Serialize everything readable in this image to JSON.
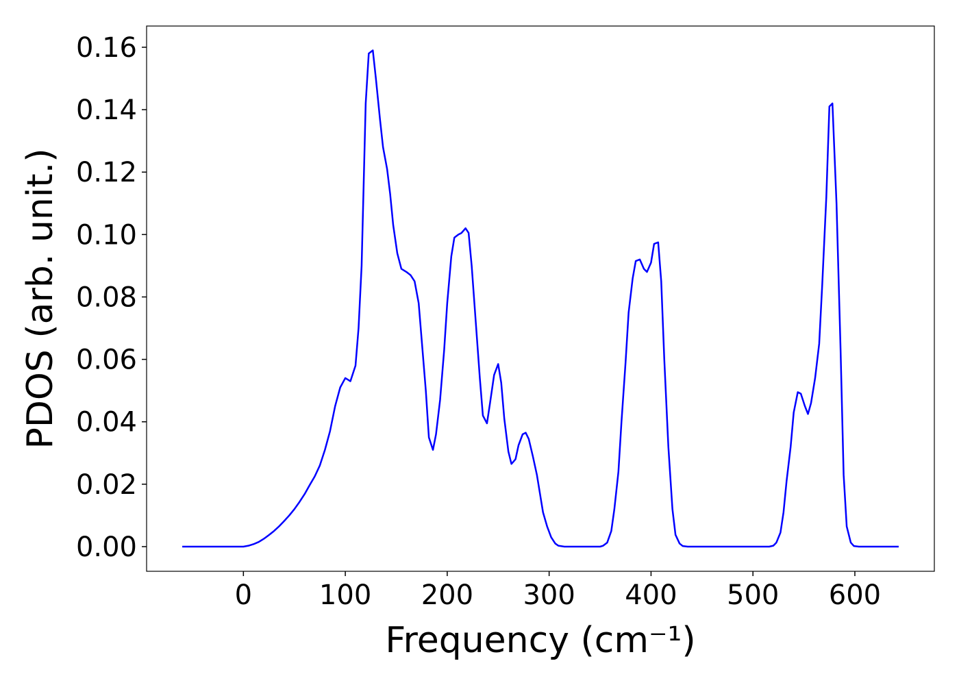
{
  "chart_data": {
    "type": "line",
    "xlabel": "Frequency (cm⁻¹)",
    "ylabel": "PDOS (arb. unit.)",
    "color": "#0000ff",
    "x": [
      -60,
      0,
      5,
      10,
      15,
      20,
      25,
      30,
      35,
      40,
      45,
      50,
      55,
      60,
      65,
      70,
      75,
      80,
      85,
      90,
      95,
      100,
      105,
      110,
      113,
      116,
      120,
      123,
      127,
      130,
      134,
      137,
      141,
      144,
      147,
      151,
      155,
      160,
      164,
      168,
      172,
      175,
      179,
      182,
      186,
      189,
      193,
      197,
      200,
      204,
      207,
      211,
      214,
      218,
      221,
      224,
      228,
      232,
      235,
      239,
      242,
      246,
      250,
      253,
      256,
      260,
      263,
      267,
      270,
      274,
      277,
      280,
      284,
      288,
      291,
      294,
      298,
      302,
      306,
      309,
      315,
      350,
      353,
      357,
      361,
      364,
      368,
      371,
      375,
      378,
      382,
      385,
      389,
      393,
      396,
      400,
      403,
      407,
      410,
      413,
      417,
      421,
      424,
      428,
      431,
      436,
      516,
      520,
      523,
      527,
      530,
      533,
      537,
      540,
      544,
      547,
      551,
      554,
      557,
      561,
      565,
      568,
      572,
      575,
      578,
      582,
      586,
      589,
      592,
      596,
      599,
      604,
      643
    ],
    "values": [
      0,
      0,
      0.0003,
      0.0008,
      0.0015,
      0.0025,
      0.0037,
      0.005,
      0.0065,
      0.0082,
      0.01,
      0.012,
      0.0143,
      0.0168,
      0.0197,
      0.0225,
      0.026,
      0.031,
      0.037,
      0.045,
      0.051,
      0.054,
      0.053,
      0.058,
      0.07,
      0.09,
      0.142,
      0.158,
      0.159,
      0.15,
      0.137,
      0.128,
      0.121,
      0.113,
      0.103,
      0.094,
      0.089,
      0.088,
      0.087,
      0.085,
      0.078,
      0.066,
      0.05,
      0.035,
      0.031,
      0.036,
      0.047,
      0.063,
      0.078,
      0.093,
      0.099,
      0.1,
      0.1005,
      0.102,
      0.1005,
      0.09,
      0.072,
      0.054,
      0.042,
      0.0395,
      0.046,
      0.055,
      0.0585,
      0.0525,
      0.041,
      0.0305,
      0.0265,
      0.028,
      0.0325,
      0.036,
      0.0365,
      0.0345,
      0.029,
      0.023,
      0.017,
      0.011,
      0.0065,
      0.003,
      0.001,
      0.0003,
      0,
      0,
      0.0003,
      0.0013,
      0.005,
      0.012,
      0.024,
      0.04,
      0.059,
      0.075,
      0.086,
      0.0915,
      0.092,
      0.089,
      0.088,
      0.091,
      0.097,
      0.0975,
      0.085,
      0.06,
      0.032,
      0.012,
      0.0038,
      0.001,
      0.0002,
      0,
      0,
      0.0003,
      0.0013,
      0.0045,
      0.011,
      0.021,
      0.032,
      0.043,
      0.0495,
      0.049,
      0.045,
      0.0425,
      0.046,
      0.054,
      0.065,
      0.084,
      0.112,
      0.141,
      0.142,
      0.11,
      0.063,
      0.023,
      0.0065,
      0.0013,
      0.0002,
      0,
      0
    ],
    "xlim": [
      -95,
      678
    ],
    "xticks": [
      0,
      100,
      200,
      300,
      400,
      500,
      600
    ],
    "ylim": [
      -0.0079,
      0.1668
    ],
    "yticks": [
      {
        "value": 0,
        "label": "0.00"
      },
      {
        "value": 0.02,
        "label": "0.02"
      },
      {
        "value": 0.04,
        "label": "0.04"
      },
      {
        "value": 0.06,
        "label": "0.06"
      },
      {
        "value": 0.08,
        "label": "0.08"
      },
      {
        "value": 0.1,
        "label": "0.10"
      },
      {
        "value": 0.12,
        "label": "0.12"
      },
      {
        "value": 0.14,
        "label": "0.14"
      },
      {
        "value": 0.16,
        "label": "0.16"
      }
    ]
  }
}
